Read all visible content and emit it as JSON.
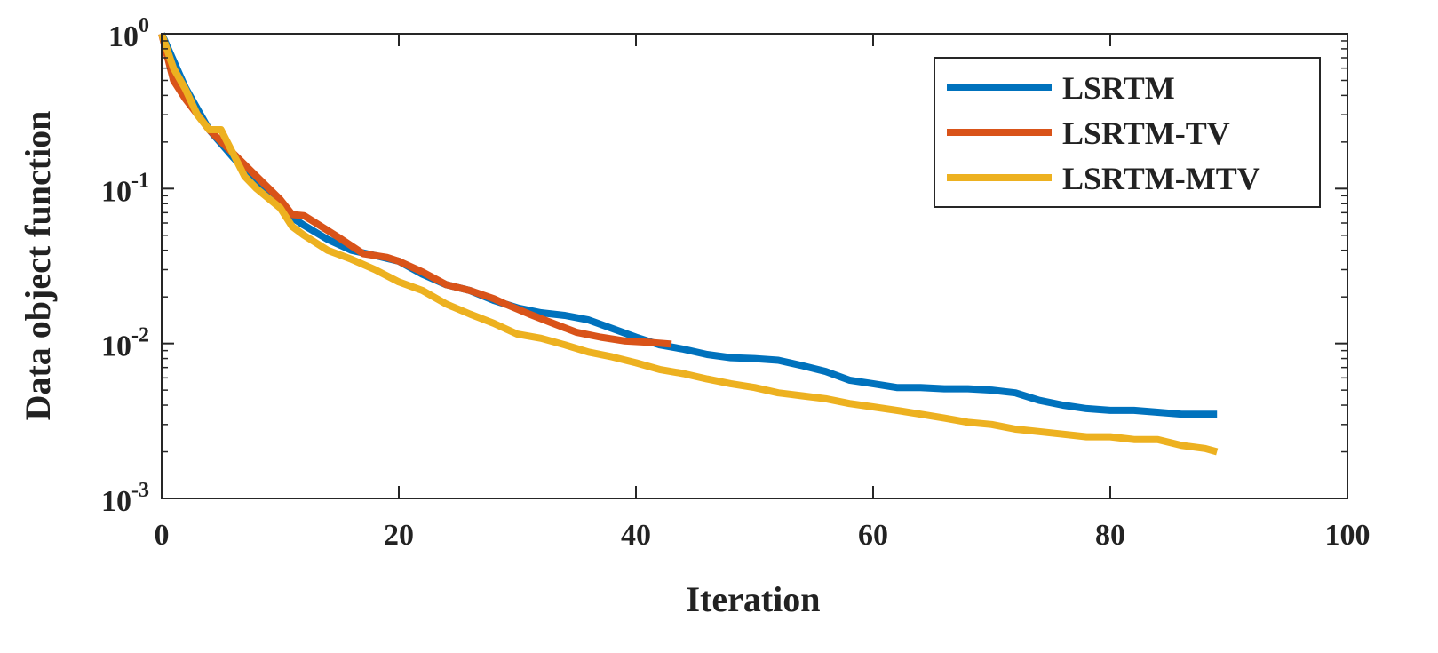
{
  "chart_data": {
    "type": "line",
    "title": "",
    "xlabel": "Iteration",
    "ylabel": "Data object function",
    "xlim": [
      0,
      100
    ],
    "ylim": [
      0.001,
      1
    ],
    "yscale": "log",
    "xticks": [
      0,
      20,
      40,
      60,
      80,
      100
    ],
    "xtick_labels": [
      "0",
      "20",
      "40",
      "60",
      "80",
      "100"
    ],
    "yticks": [
      0.001,
      0.01,
      0.1,
      1
    ],
    "ytick_labels": [
      {
        "base": "10",
        "exp": "-3"
      },
      {
        "base": "10",
        "exp": "-2"
      },
      {
        "base": "10",
        "exp": "-1"
      },
      {
        "base": "10",
        "exp": "0"
      }
    ],
    "grid": false,
    "legend_position": "top-right",
    "series": [
      {
        "name": "LSRTM",
        "color": "#0072BD",
        "x": [
          0,
          2,
          4,
          6,
          8,
          10,
          11,
          12,
          14,
          16,
          18,
          20,
          22,
          24,
          26,
          28,
          30,
          32,
          34,
          36,
          38,
          40,
          42,
          44,
          46,
          48,
          50,
          52,
          54,
          56,
          58,
          60,
          62,
          64,
          66,
          68,
          70,
          72,
          74,
          76,
          78,
          80,
          82,
          84,
          86,
          88,
          89
        ],
        "y": [
          1.0,
          0.45,
          0.24,
          0.16,
          0.11,
          0.08,
          0.065,
          0.058,
          0.047,
          0.04,
          0.037,
          0.034,
          0.028,
          0.024,
          0.022,
          0.019,
          0.017,
          0.0158,
          0.0152,
          0.0142,
          0.0125,
          0.011,
          0.0098,
          0.0092,
          0.0085,
          0.0081,
          0.008,
          0.0078,
          0.0072,
          0.0066,
          0.0058,
          0.0055,
          0.0052,
          0.0052,
          0.0051,
          0.0051,
          0.005,
          0.0048,
          0.0043,
          0.004,
          0.0038,
          0.0037,
          0.0037,
          0.0036,
          0.0035,
          0.0035,
          0.0035
        ]
      },
      {
        "name": "LSRTM-TV",
        "color": "#D95319",
        "x": [
          0,
          1,
          2,
          4,
          6,
          8,
          10,
          11,
          12,
          13,
          15,
          17,
          19,
          20,
          22,
          24,
          26,
          28,
          29,
          31,
          33,
          35,
          37,
          39,
          41,
          43
        ],
        "y": [
          1.0,
          0.5,
          0.38,
          0.24,
          0.17,
          0.12,
          0.085,
          0.068,
          0.067,
          0.06,
          0.048,
          0.038,
          0.036,
          0.034,
          0.029,
          0.024,
          0.022,
          0.0195,
          0.018,
          0.0155,
          0.0135,
          0.0118,
          0.011,
          0.0104,
          0.0102,
          0.0099
        ]
      },
      {
        "name": "LSRTM-MTV",
        "color": "#EDB120",
        "x": [
          0,
          1,
          2,
          3,
          4,
          5,
          6,
          7,
          8,
          10,
          11,
          12,
          14,
          16,
          18,
          20,
          22,
          24,
          26,
          28,
          30,
          32,
          34,
          36,
          38,
          40,
          42,
          44,
          46,
          48,
          50,
          52,
          54,
          56,
          58,
          60,
          62,
          64,
          66,
          68,
          70,
          72,
          74,
          76,
          78,
          80,
          82,
          84,
          86,
          88,
          89
        ],
        "y": [
          1.0,
          0.6,
          0.44,
          0.3,
          0.24,
          0.24,
          0.17,
          0.12,
          0.1,
          0.075,
          0.057,
          0.05,
          0.04,
          0.035,
          0.03,
          0.025,
          0.022,
          0.018,
          0.0155,
          0.0135,
          0.0115,
          0.0108,
          0.0098,
          0.0088,
          0.0082,
          0.0075,
          0.0068,
          0.0064,
          0.0059,
          0.0055,
          0.0052,
          0.0048,
          0.0046,
          0.0044,
          0.0041,
          0.0039,
          0.0037,
          0.0035,
          0.0033,
          0.0031,
          0.003,
          0.0028,
          0.0027,
          0.0026,
          0.0025,
          0.0025,
          0.0024,
          0.0024,
          0.0022,
          0.0021,
          0.002
        ]
      }
    ]
  }
}
